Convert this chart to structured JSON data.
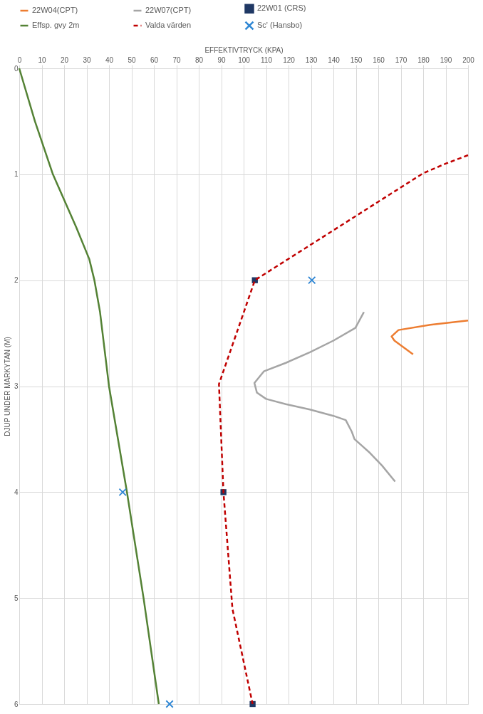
{
  "chart_data": {
    "type": "line",
    "xlabel": "EFFEKTIVTRYCK (KPA)",
    "ylabel": "DJUP UNDER MARKYTAN (M)",
    "xlim": [
      0,
      200
    ],
    "xticks": [
      0,
      10,
      20,
      30,
      40,
      50,
      60,
      70,
      80,
      90,
      100,
      110,
      120,
      130,
      140,
      150,
      160,
      170,
      180,
      190,
      200
    ],
    "ylim": [
      6,
      0
    ],
    "yticks": [
      0,
      1,
      2,
      3,
      4,
      5,
      6
    ],
    "grid": true,
    "legend": "top",
    "series": [
      {
        "name": "22W04(CPT)",
        "color": "#ed7d31",
        "line_style": "solid",
        "marker": "none",
        "x": [
          200,
          183.2,
          169,
          165.9,
          167.2,
          175.5
        ],
        "values": [
          2.38,
          2.42,
          2.47,
          2.53,
          2.57,
          2.7
        ]
      },
      {
        "name": "22W07(CPT)",
        "color": "#a5a5a5",
        "line_style": "solid",
        "marker": "none",
        "x": [
          153.6,
          149.8,
          140,
          129.5,
          118.8,
          109,
          104.8,
          105.9,
          110,
          118.8,
          129.5,
          140,
          145.5,
          148.2,
          149.4,
          156.3,
          161.7,
          167.5
        ],
        "values": [
          2.3,
          2.45,
          2.57,
          2.68,
          2.78,
          2.86,
          2.97,
          3.06,
          3.12,
          3.17,
          3.22,
          3.28,
          3.32,
          3.43,
          3.5,
          3.63,
          3.75,
          3.9
        ]
      },
      {
        "name": "22W01 (CRS)",
        "type": "scatter",
        "color": "#1f3864",
        "marker": "square",
        "x": [
          105,
          91,
          104
        ],
        "values": [
          2,
          4,
          6
        ]
      },
      {
        "name": "Effsp. gvy 2m",
        "color": "#548235",
        "line_style": "solid",
        "marker": "none",
        "x": [
          0,
          7,
          15,
          25.4,
          31.2,
          33.5,
          36,
          40,
          48,
          55.4,
          62.2
        ],
        "values": [
          0,
          0.5,
          1,
          1.5,
          1.8,
          2,
          2.3,
          3,
          4,
          5,
          6
        ]
      },
      {
        "name": "Valda värden",
        "color": "#c00000",
        "line_style": "dashed",
        "marker": "none",
        "x": [
          200,
          190,
          180,
          105,
          89,
          91,
          95,
          104
        ],
        "values": [
          0.82,
          0.9,
          0.99,
          2,
          2.98,
          4,
          5.1,
          6
        ]
      },
      {
        "name": "Sc' (Hansbo)",
        "type": "scatter",
        "color": "#2e86d4",
        "marker": "cross",
        "x": [
          130.4,
          46.1,
          67
        ],
        "values": [
          2,
          4,
          6
        ]
      }
    ]
  }
}
